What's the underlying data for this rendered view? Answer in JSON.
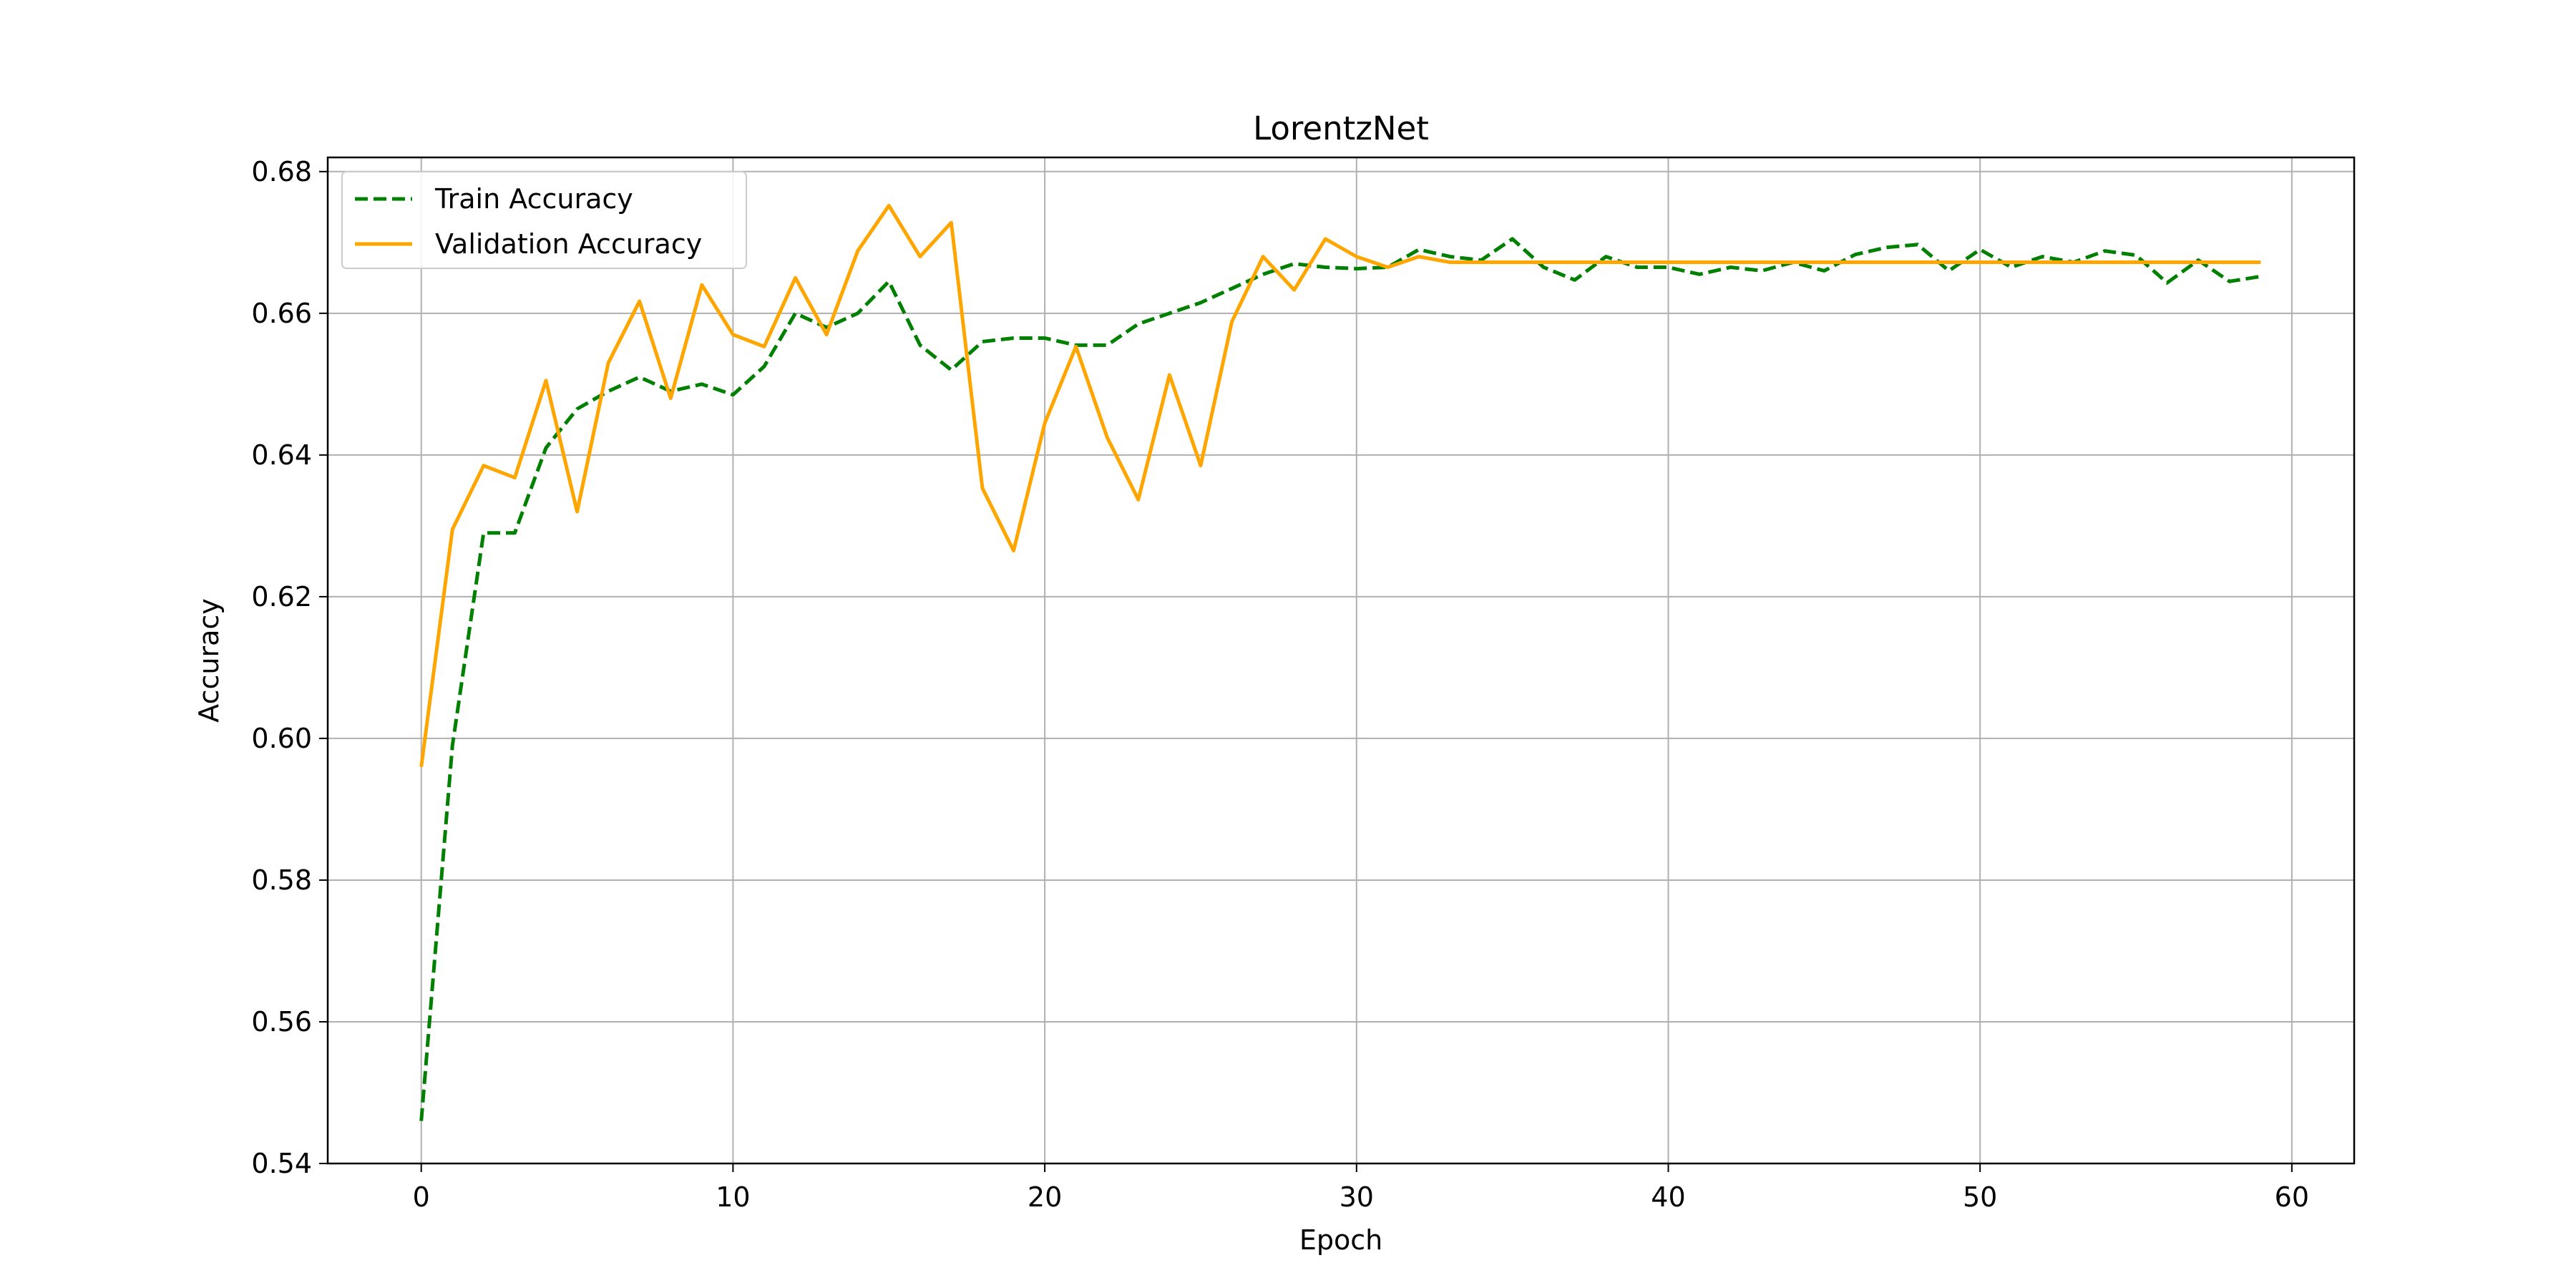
{
  "chart_data": {
    "type": "line",
    "title": "LorentzNet",
    "xlabel": "Epoch",
    "ylabel": "Accuracy",
    "xlim": [
      -3,
      62
    ],
    "ylim": [
      0.54,
      0.682
    ],
    "xticks": [
      0,
      10,
      20,
      30,
      40,
      50,
      60
    ],
    "xtick_labels": [
      "0",
      "10",
      "20",
      "30",
      "40",
      "50",
      "60"
    ],
    "yticks": [
      0.54,
      0.56,
      0.58,
      0.6,
      0.62,
      0.64,
      0.66,
      0.68
    ],
    "ytick_labels": [
      "0.54",
      "0.56",
      "0.58",
      "0.60",
      "0.62",
      "0.64",
      "0.66",
      "0.68"
    ],
    "grid": true,
    "legend_position": "top-left",
    "x": [
      0,
      1,
      2,
      3,
      4,
      5,
      6,
      7,
      8,
      9,
      10,
      11,
      12,
      13,
      14,
      15,
      16,
      17,
      18,
      19,
      20,
      21,
      22,
      23,
      24,
      25,
      26,
      27,
      28,
      29,
      30,
      31,
      32,
      33,
      34,
      35,
      36,
      37,
      38,
      39,
      40,
      41,
      42,
      43,
      44,
      45,
      46,
      47,
      48,
      49,
      50,
      51,
      52,
      53,
      54,
      55,
      56,
      57,
      58,
      59
    ],
    "series": [
      {
        "name": "Train Accuracy",
        "color": "#008000",
        "style": "dashed",
        "values": [
          0.546,
          0.599,
          0.629,
          0.629,
          0.641,
          0.6465,
          0.649,
          0.651,
          0.649,
          0.65,
          0.6485,
          0.6525,
          0.66,
          0.658,
          0.66,
          0.6645,
          0.6555,
          0.652,
          0.656,
          0.6565,
          0.6565,
          0.6555,
          0.6555,
          0.6585,
          0.66,
          0.6615,
          0.6635,
          0.6655,
          0.667,
          0.6665,
          0.6663,
          0.6665,
          0.669,
          0.668,
          0.6675,
          0.6705,
          0.6665,
          0.6647,
          0.668,
          0.6665,
          0.6665,
          0.6655,
          0.6665,
          0.666,
          0.6672,
          0.666,
          0.6683,
          0.6693,
          0.6697,
          0.666,
          0.669,
          0.6665,
          0.668,
          0.6672,
          0.6688,
          0.6682,
          0.6643,
          0.6675,
          0.6645,
          0.6652
        ]
      },
      {
        "name": "Validation Accuracy",
        "color": "#FFA500",
        "style": "solid",
        "values": [
          0.596,
          0.6295,
          0.6385,
          0.6368,
          0.6505,
          0.632,
          0.653,
          0.6617,
          0.648,
          0.664,
          0.657,
          0.6553,
          0.665,
          0.657,
          0.6688,
          0.6752,
          0.668,
          0.6728,
          0.6353,
          0.6265,
          0.6445,
          0.6553,
          0.6425,
          0.6337,
          0.6513,
          0.6385,
          0.6588,
          0.668,
          0.6633,
          0.6705,
          0.668,
          0.6665,
          0.668,
          0.6672,
          0.6672,
          0.6672,
          0.6672,
          0.6672,
          0.6672,
          0.6672,
          0.6672,
          0.6672,
          0.6672,
          0.6672,
          0.6672,
          0.6672,
          0.6672,
          0.6672,
          0.6672,
          0.6672,
          0.6672,
          0.6672,
          0.6672,
          0.6672,
          0.6672,
          0.6672,
          0.6672,
          0.6672,
          0.6672,
          0.6672
        ]
      }
    ]
  }
}
